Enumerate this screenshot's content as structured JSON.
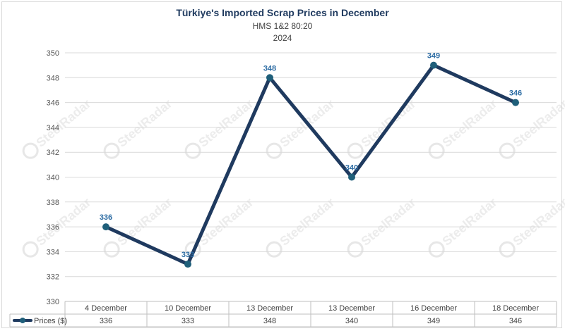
{
  "chart_data": {
    "type": "line",
    "title": "Türkiye's Imported Scrap Prices in December",
    "subtitle": "HMS 1&2 80:20",
    "year": "2024",
    "categories": [
      "4 December",
      "10 December",
      "13 December",
      "13 December",
      "16 December",
      "18 December"
    ],
    "series": [
      {
        "name": "Prices ($)",
        "values": [
          336,
          333,
          348,
          340,
          349,
          346
        ],
        "color": "#1f3a5f"
      }
    ],
    "yticks": [
      330,
      332,
      334,
      336,
      338,
      340,
      342,
      344,
      346,
      348,
      350
    ],
    "ylim": [
      330,
      350
    ],
    "grid": true,
    "data_labels": true,
    "data_table": true,
    "label_color": "#2e6da4",
    "watermark": "SteelRadar"
  }
}
